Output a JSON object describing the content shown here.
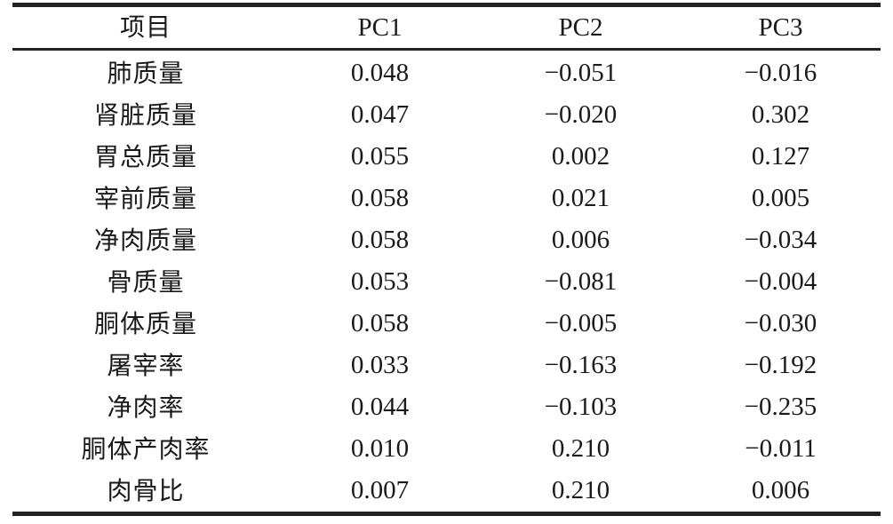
{
  "table": {
    "headers": [
      "项目",
      "PC1",
      "PC2",
      "PC3"
    ],
    "rows": [
      [
        "肺质量",
        "0.048",
        "−0.051",
        "−0.016"
      ],
      [
        "肾脏质量",
        "0.047",
        "−0.020",
        "0.302"
      ],
      [
        "胃总质量",
        "0.055",
        "0.002",
        "0.127"
      ],
      [
        "宰前质量",
        "0.058",
        "0.021",
        "0.005"
      ],
      [
        "净肉质量",
        "0.058",
        "0.006",
        "−0.034"
      ],
      [
        "骨质量",
        "0.053",
        "−0.081",
        "−0.004"
      ],
      [
        "胴体质量",
        "0.058",
        "−0.005",
        "−0.030"
      ],
      [
        "屠宰率",
        "0.033",
        "−0.163",
        "−0.192"
      ],
      [
        "净肉率",
        "0.044",
        "−0.103",
        "−0.235"
      ],
      [
        "胴体产肉率",
        "0.010",
        "0.210",
        "−0.011"
      ],
      [
        "肉骨比",
        "0.007",
        "0.210",
        "0.006"
      ]
    ]
  }
}
